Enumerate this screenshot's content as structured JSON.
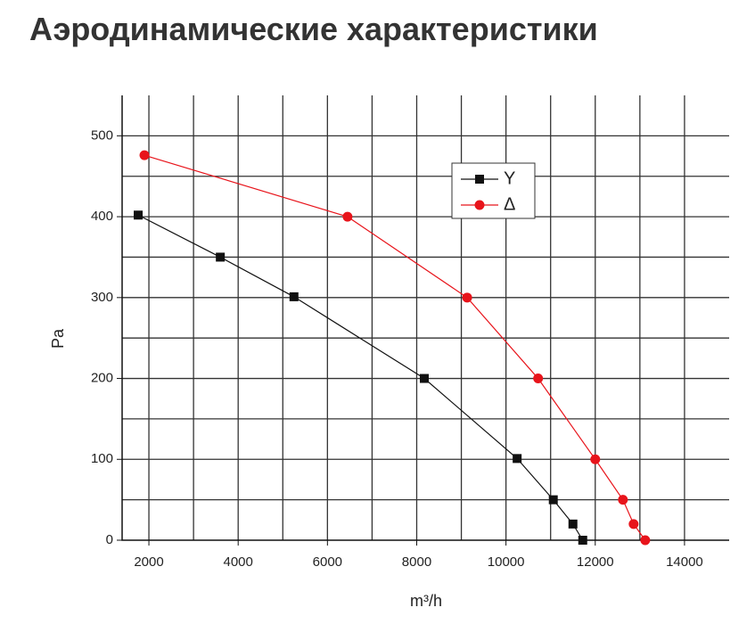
{
  "page_title": "Аэродинамические характеристики",
  "chart_data": {
    "type": "line",
    "y_label": "Pa",
    "x_label": "m³/h",
    "xlim": [
      1400,
      15000
    ],
    "ylim": [
      0,
      550
    ],
    "xticks": [
      2000,
      4000,
      6000,
      8000,
      10000,
      12000,
      14000
    ],
    "yticks": [
      0,
      100,
      200,
      300,
      400,
      500
    ],
    "xgrid": [
      2000,
      3000,
      4000,
      5000,
      6000,
      7000,
      8000,
      9000,
      10000,
      11000,
      12000,
      13000,
      14000
    ],
    "ygrid": [
      50,
      100,
      150,
      200,
      250,
      300,
      350,
      400,
      450,
      500
    ],
    "grid": true,
    "legend": "upper-center",
    "series": [
      {
        "name": "Y",
        "color": "#111111",
        "marker": "square",
        "x": [
          1760,
          3600,
          5250,
          8170,
          10250,
          11060,
          11500,
          11720
        ],
        "values": [
          402,
          350,
          301,
          200,
          101,
          50,
          20,
          0
        ]
      },
      {
        "name": "Δ",
        "color": "#e8141b",
        "marker": "circle",
        "x": [
          1900,
          6450,
          9130,
          10720,
          12000,
          12620,
          12860,
          13120
        ],
        "values": [
          476,
          400,
          300,
          200,
          100,
          50,
          20,
          0
        ]
      }
    ]
  }
}
